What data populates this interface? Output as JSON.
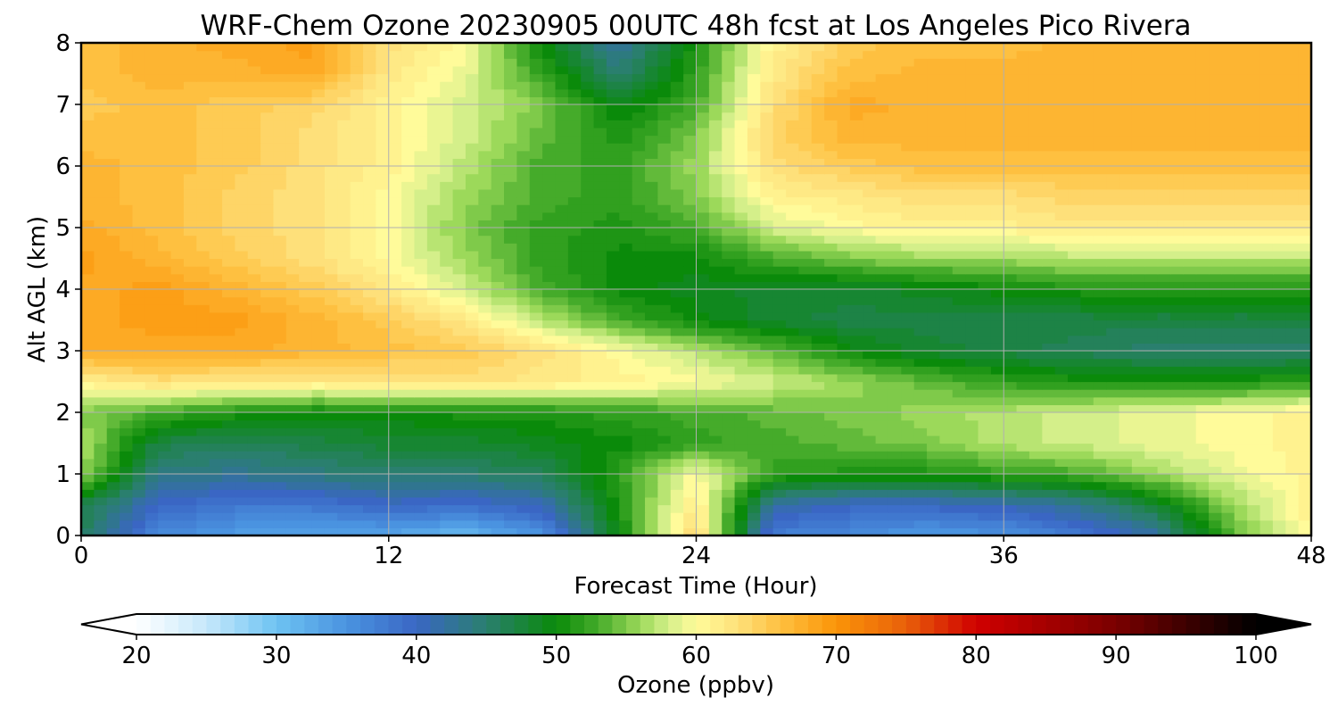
{
  "chart_data": {
    "type": "heatmap",
    "title": "WRF-Chem Ozone  20230905 00UTC 48h fcst at Los Angeles Pico Rivera",
    "xlabel": "Forecast Time (Hour)",
    "ylabel": "Alt AGL (km)",
    "xlim": [
      0,
      48
    ],
    "ylim": [
      0,
      8
    ],
    "xticks": [
      "0",
      "12",
      "24",
      "36",
      "48"
    ],
    "yticks": [
      "0",
      "1",
      "2",
      "3",
      "4",
      "5",
      "6",
      "7",
      "8"
    ],
    "grid": true,
    "x": [
      0,
      3,
      6,
      9,
      12,
      15,
      18,
      21,
      24,
      27,
      30,
      33,
      36,
      39,
      42,
      45,
      48
    ],
    "y": [
      0,
      0.5,
      1,
      1.5,
      2,
      2.5,
      3,
      3.5,
      4,
      4.5,
      5,
      5.5,
      6,
      6.5,
      7,
      7.5,
      8
    ],
    "z": [
      [
        46,
        36,
        34,
        33,
        33,
        31,
        35,
        50,
        64,
        37,
        36,
        34,
        35,
        38,
        42,
        54,
        61
      ],
      [
        47,
        40,
        38,
        38,
        40,
        39,
        41,
        51,
        62,
        42,
        40,
        40,
        41,
        43,
        48,
        56,
        61
      ],
      [
        56,
        44,
        43,
        44,
        45,
        45,
        46,
        52,
        60,
        52,
        51,
        51,
        52,
        53,
        56,
        59,
        61
      ],
      [
        57,
        47,
        46,
        47,
        48,
        48,
        49,
        50,
        52,
        53,
        54,
        55,
        57,
        58,
        59,
        60,
        61
      ],
      [
        55,
        53,
        51,
        50,
        50,
        51,
        51,
        52,
        53,
        54,
        55,
        56,
        57,
        58,
        59,
        60,
        61
      ],
      [
        61,
        63,
        62,
        62,
        62,
        63,
        62,
        61,
        60,
        58,
        56,
        54,
        52,
        51,
        51,
        51,
        52
      ],
      [
        68,
        68,
        68,
        67,
        66,
        65,
        63,
        60,
        57,
        54,
        50,
        48,
        47,
        46,
        45,
        45,
        45
      ],
      [
        68,
        69,
        69,
        67,
        65,
        62,
        57,
        53,
        50,
        48,
        47,
        47,
        47,
        47,
        47,
        47,
        47
      ],
      [
        68,
        69,
        67,
        65,
        62,
        58,
        53,
        50,
        49,
        48,
        48,
        49,
        50,
        51,
        51,
        51,
        51
      ],
      [
        69,
        67,
        65,
        63,
        60,
        56,
        52,
        50,
        50,
        53,
        55,
        56,
        56,
        57,
        57,
        57,
        57
      ],
      [
        68,
        66,
        64,
        63,
        60,
        55,
        52,
        51,
        53,
        58,
        60,
        61,
        61,
        62,
        62,
        62,
        62
      ],
      [
        67,
        66,
        64,
        63,
        60,
        56,
        53,
        52,
        55,
        61,
        62,
        63,
        63,
        64,
        64,
        64,
        64
      ],
      [
        67,
        66,
        65,
        63,
        61,
        57,
        53,
        52,
        56,
        63,
        65,
        66,
        66,
        66,
        66,
        66,
        66
      ],
      [
        66,
        66,
        65,
        63,
        61,
        58,
        54,
        51,
        55,
        64,
        67,
        67,
        67,
        67,
        67,
        67,
        67
      ],
      [
        65,
        66,
        65,
        64,
        61,
        58,
        55,
        49,
        53,
        63,
        68,
        67,
        67,
        67,
        67,
        67,
        67
      ],
      [
        66,
        67,
        67,
        68,
        62,
        59,
        52,
        45,
        52,
        62,
        66,
        67,
        67,
        67,
        67,
        67,
        67
      ],
      [
        66,
        67,
        68,
        69,
        63,
        60,
        50,
        42,
        51,
        61,
        65,
        66,
        66,
        67,
        67,
        67,
        67
      ]
    ],
    "colorbar": {
      "label": "Ozone  (ppbv)",
      "min": 20,
      "max": 100,
      "extend": "both",
      "ticks": [
        "20",
        "30",
        "40",
        "50",
        "60",
        "70",
        "80",
        "90",
        "100"
      ],
      "stops": [
        [
          20,
          "#ffffff"
        ],
        [
          25,
          "#c6e8fb"
        ],
        [
          30,
          "#6ec3f2"
        ],
        [
          35,
          "#4a93e0"
        ],
        [
          40,
          "#3a66c4"
        ],
        [
          45,
          "#2a7f6e"
        ],
        [
          50,
          "#0a8a0a"
        ],
        [
          53,
          "#45ab2a"
        ],
        [
          56,
          "#9cd95a"
        ],
        [
          58,
          "#d4ef8a"
        ],
        [
          60,
          "#fffb9a"
        ],
        [
          63,
          "#fee07a"
        ],
        [
          66,
          "#fec040"
        ],
        [
          70,
          "#fb9408"
        ],
        [
          75,
          "#e8600a"
        ],
        [
          80,
          "#d00000"
        ],
        [
          90,
          "#7a0000"
        ],
        [
          100,
          "#000000"
        ]
      ]
    }
  }
}
